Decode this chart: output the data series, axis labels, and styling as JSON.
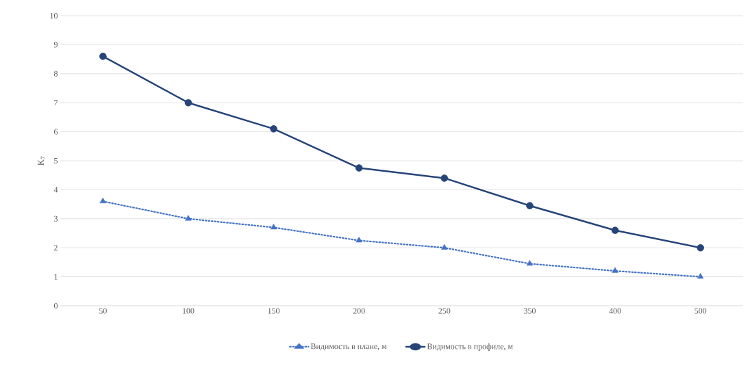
{
  "chart_data": {
    "type": "line",
    "ylabel": "K$_{7}$",
    "categories": [
      "50",
      "100",
      "150",
      "200",
      "250",
      "350",
      "400",
      "500"
    ],
    "series": [
      {
        "name": "Видимость в плане, м",
        "color": "#4472c4",
        "marker": "triangle",
        "line_style": "dotted",
        "values": [
          3.6,
          3.0,
          2.7,
          2.25,
          2.0,
          1.45,
          1.2,
          1.0
        ]
      },
      {
        "name": "Видимость в профиле, м",
        "color": "#264478",
        "marker": "circle",
        "line_style": "solid",
        "values": [
          8.6,
          7.0,
          6.1,
          4.75,
          4.4,
          3.45,
          2.6,
          2.0
        ]
      }
    ],
    "ylim": [
      0,
      10
    ],
    "yticks": [
      0,
      1,
      2,
      3,
      4,
      5,
      6,
      7,
      8,
      9,
      10
    ],
    "grid": "y",
    "legend": "bottom"
  }
}
